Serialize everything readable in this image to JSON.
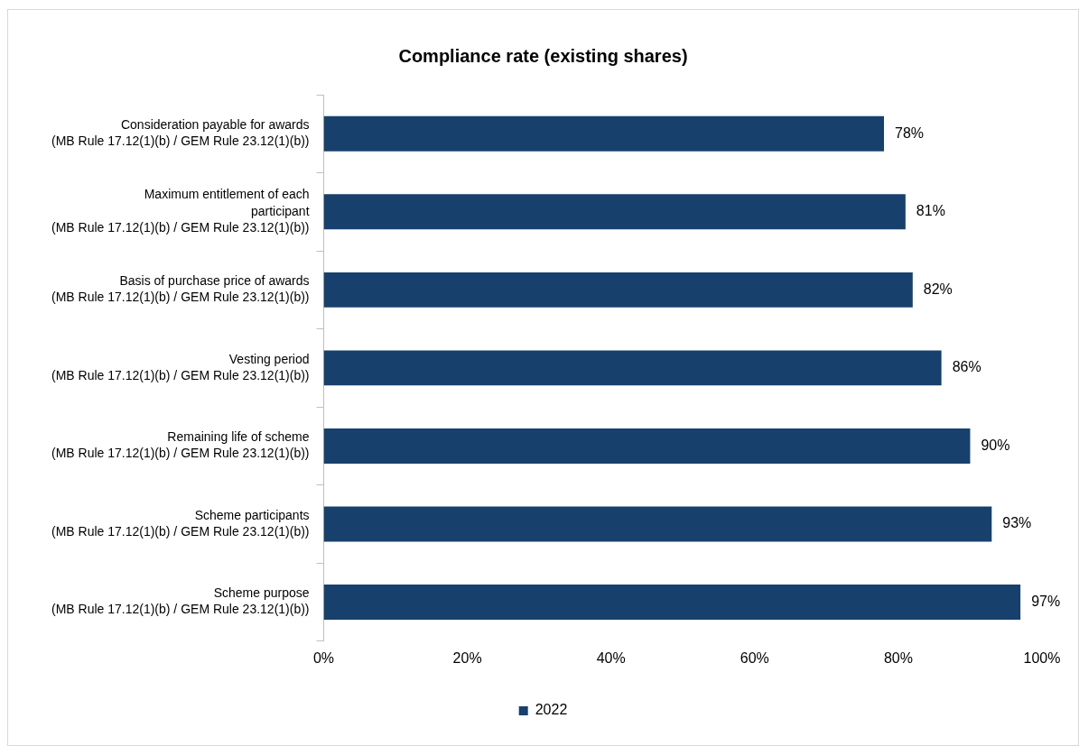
{
  "chart_data": {
    "type": "bar",
    "orientation": "horizontal",
    "title": "Compliance rate (existing shares)",
    "categories": [
      "Consideration payable for awards (MB Rule 17.12(1)(b) / GEM Rule 23.12(1)(b))",
      "Maximum entitlement of each participant (MB Rule 17.12(1)(b) / GEM Rule 23.12(1)(b))",
      "Basis of purchase price of awards (MB Rule 17.12(1)(b) / GEM Rule 23.12(1)(b))",
      "Vesting period (MB Rule 17.12(1)(b) / GEM Rule 23.12(1)(b))",
      "Remaining life of scheme (MB Rule 17.12(1)(b) / GEM Rule 23.12(1)(b))",
      "Scheme participants (MB Rule 17.12(1)(b) / GEM Rule 23.12(1)(b))",
      "Scheme purpose (MB Rule 17.12(1)(b) / GEM Rule 23.12(1)(b))"
    ],
    "series": [
      {
        "name": "2022",
        "color": "#17406d",
        "values": [
          78,
          81,
          82,
          86,
          90,
          93,
          97
        ],
        "value_labels": [
          "78%",
          "81%",
          "82%",
          "86%",
          "90%",
          "93%",
          "97%"
        ]
      }
    ],
    "xlim": [
      0,
      100
    ],
    "xticks": [
      {
        "value": 0,
        "label": "0%"
      },
      {
        "value": 20,
        "label": "20%"
      },
      {
        "value": 40,
        "label": "40%"
      },
      {
        "value": 60,
        "label": "60%"
      },
      {
        "value": 80,
        "label": "80%"
      },
      {
        "value": 100,
        "label": "100%"
      }
    ],
    "grid": false,
    "legend": "bottom"
  }
}
